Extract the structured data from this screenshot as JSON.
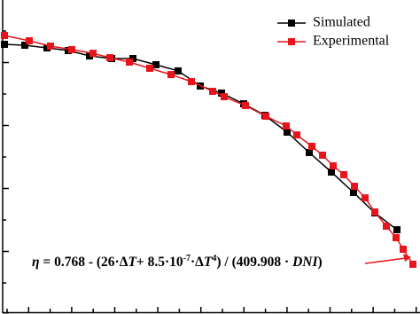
{
  "chart_data": {
    "type": "line",
    "annotation": [
      "η",
      " = 0.768 - (26·Δ",
      "T",
      "+ 8.5·10",
      "-7",
      "·Δ",
      "T",
      "4",
      ") / (409.908 · ",
      "DNI",
      ")"
    ],
    "xlim": [
      0,
      474
    ],
    "ylim": [
      0.55,
      0.7993
    ],
    "series": [
      {
        "name": "Simulated",
        "color": "#000000",
        "x": [
          5,
          28,
          53,
          77,
          101,
          126,
          150,
          176,
          201,
          226,
          250,
          275,
          299,
          324,
          349,
          374,
          399,
          423,
          448
        ],
        "values": [
          0.7641,
          0.7634,
          0.7613,
          0.7592,
          0.7549,
          0.7528,
          0.7528,
          0.7479,
          0.743,
          0.731,
          0.7254,
          0.7169,
          0.7077,
          0.6944,
          0.6782,
          0.6627,
          0.6465,
          0.6303,
          0.6169
        ]
      },
      {
        "name": "Experimental",
        "color": "#e8141c",
        "x": [
          5,
          33,
          57,
          81,
          105,
          124,
          146,
          169,
          193,
          216,
          240,
          253,
          277,
          300,
          323,
          335,
          352,
          364,
          376,
          388,
          400,
          412,
          423,
          436,
          447,
          455,
          466
        ],
        "values": [
          0.7711,
          0.7669,
          0.7627,
          0.7599,
          0.757,
          0.7535,
          0.75,
          0.7451,
          0.7401,
          0.7345,
          0.7268,
          0.7225,
          0.7155,
          0.707,
          0.6993,
          0.6922,
          0.6831,
          0.6761,
          0.6676,
          0.6606,
          0.6514,
          0.6422,
          0.631,
          0.6197,
          0.6106,
          0.6014,
          0.5895
        ]
      }
    ]
  }
}
